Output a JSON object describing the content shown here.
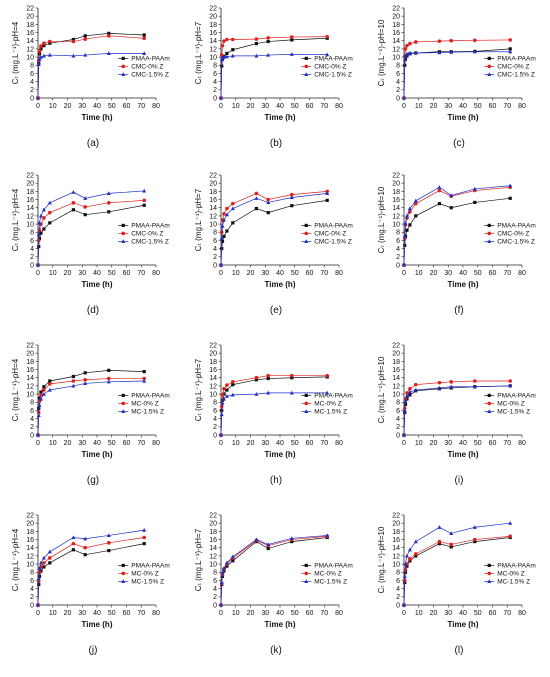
{
  "figure": {
    "x_axis_ticks": [
      "0",
      "10",
      "20",
      "30",
      "40",
      "50",
      "60",
      "70",
      "80"
    ],
    "time": [
      0,
      0.5,
      1,
      2,
      4,
      8,
      24,
      32,
      48,
      72
    ],
    "series_styles": [
      {
        "color": "#111111",
        "marker": "square"
      },
      {
        "color": "#e0201b",
        "marker": "circle"
      },
      {
        "color": "#1f2fc8",
        "marker": "triangle"
      }
    ]
  },
  "chart_data": [
    {
      "type": "line",
      "caption": "(a)",
      "xlabel": "Time (h)",
      "ylabel": "Cₜ (mg.L⁻¹)-pH=4",
      "ylim": [
        0,
        22
      ],
      "yticks": [
        0,
        2,
        4,
        6,
        8,
        10,
        12,
        14,
        16,
        18,
        20,
        22
      ],
      "xlim": [
        0,
        80
      ],
      "x": [
        0,
        0.5,
        1,
        2,
        4,
        8,
        24,
        32,
        48,
        72
      ],
      "series": [
        {
          "name": "PMAA-PAAm",
          "values": [
            0,
            8.5,
            10.8,
            12.0,
            12.8,
            13.4,
            14.3,
            15.2,
            15.8,
            15.4
          ]
        },
        {
          "name": "CMC-0% Z",
          "values": [
            0,
            9.2,
            11.5,
            12.7,
            13.4,
            13.8,
            13.8,
            14.4,
            15.2,
            14.6
          ]
        },
        {
          "name": "CMC-1.5% Z",
          "values": [
            0,
            8.2,
            9.5,
            10.0,
            10.3,
            10.5,
            10.3,
            10.5,
            10.9,
            10.9
          ]
        }
      ]
    },
    {
      "type": "line",
      "caption": "(b)",
      "xlabel": "Time (h)",
      "ylabel": "Cₜ (mg.L⁻¹)-pH=7",
      "ylim": [
        0,
        22
      ],
      "yticks": [
        0,
        2,
        4,
        6,
        8,
        10,
        12,
        14,
        16,
        18,
        20,
        22
      ],
      "xlim": [
        0,
        80
      ],
      "x": [
        0,
        0.5,
        1,
        2,
        4,
        8,
        24,
        32,
        48,
        72
      ],
      "series": [
        {
          "name": "PMAA-PAAm",
          "values": [
            0,
            7.8,
            9.5,
            10.2,
            10.9,
            11.8,
            13.3,
            13.8,
            14.2,
            14.6
          ]
        },
        {
          "name": "CMC-0% Z",
          "values": [
            0,
            10.5,
            12.8,
            13.9,
            14.3,
            14.3,
            14.4,
            14.7,
            14.9,
            15.0
          ]
        },
        {
          "name": "CMC-1.5% Z",
          "values": [
            0,
            9.4,
            9.8,
            10.0,
            10.1,
            10.3,
            10.3,
            10.5,
            10.7,
            10.6
          ]
        }
      ]
    },
    {
      "type": "line",
      "caption": "(c)",
      "xlabel": "Time (h)",
      "ylabel": "Cₜ (mg.L⁻¹)-pH=10",
      "ylim": [
        0,
        22
      ],
      "yticks": [
        0,
        2,
        4,
        6,
        8,
        10,
        12,
        14,
        16,
        18,
        20,
        22
      ],
      "xlim": [
        0,
        80
      ],
      "x": [
        0,
        0.5,
        1,
        2,
        4,
        8,
        24,
        32,
        48,
        72
      ],
      "series": [
        {
          "name": "PMAA-PAAm",
          "values": [
            0,
            8.0,
            9.5,
            10.3,
            10.8,
            11.0,
            11.3,
            11.3,
            11.4,
            12.0
          ]
        },
        {
          "name": "CMC-0% Z",
          "values": [
            0,
            10.2,
            12.0,
            12.8,
            13.3,
            13.7,
            13.9,
            14.0,
            14.1,
            14.2
          ]
        },
        {
          "name": "CMC-1.5% Z",
          "values": [
            0,
            9.4,
            10.3,
            10.8,
            11.0,
            11.0,
            11.1,
            11.2,
            11.3,
            11.3
          ]
        }
      ]
    },
    {
      "type": "line",
      "caption": "(d)",
      "xlabel": "Time (h)",
      "ylabel": "Cₜ (mg.L⁻¹)-pH=4",
      "ylim": [
        0,
        22
      ],
      "yticks": [
        0,
        2,
        4,
        6,
        8,
        10,
        12,
        14,
        16,
        18,
        20,
        22
      ],
      "xlim": [
        0,
        80
      ],
      "x": [
        0,
        0.5,
        1,
        2,
        4,
        8,
        24,
        32,
        48,
        72
      ],
      "series": [
        {
          "name": "PMAA-PAAm",
          "values": [
            0,
            4.5,
            6.5,
            7.8,
            8.8,
            10.3,
            13.5,
            12.3,
            13.0,
            14.6
          ]
        },
        {
          "name": "CMC-0% Z",
          "values": [
            0,
            6.0,
            8.5,
            10.0,
            11.5,
            12.8,
            15.2,
            14.2,
            15.2,
            15.8
          ]
        },
        {
          "name": "CMC-1.5% Z",
          "values": [
            0,
            7.5,
            10.3,
            12.0,
            13.5,
            15.2,
            17.8,
            16.3,
            17.5,
            18.1
          ]
        }
      ]
    },
    {
      "type": "line",
      "caption": "(e)",
      "xlabel": "Time (h)",
      "ylabel": "Cₜ (mg.L⁻¹)-pH=7",
      "ylim": [
        0,
        22
      ],
      "yticks": [
        0,
        2,
        4,
        6,
        8,
        10,
        12,
        14,
        16,
        18,
        20,
        22
      ],
      "xlim": [
        0,
        80
      ],
      "x": [
        0,
        0.5,
        1,
        2,
        4,
        8,
        24,
        32,
        48,
        72
      ],
      "series": [
        {
          "name": "PMAA-PAAm",
          "values": [
            0,
            4.0,
            5.8,
            7.0,
            8.3,
            10.3,
            13.8,
            12.8,
            14.5,
            15.8
          ]
        },
        {
          "name": "CMC-0% Z",
          "values": [
            0,
            8.0,
            11.0,
            12.5,
            13.8,
            15.0,
            17.5,
            16.0,
            17.2,
            18.0
          ]
        },
        {
          "name": "CMC-1.5% Z",
          "values": [
            0,
            6.5,
            9.5,
            11.0,
            12.3,
            13.8,
            16.3,
            15.3,
            16.5,
            17.5
          ]
        }
      ]
    },
    {
      "type": "line",
      "caption": "(f)",
      "xlabel": "Time (h)",
      "ylabel": "Cₜ (mg.L⁻¹)-pH=10",
      "ylim": [
        0,
        22
      ],
      "yticks": [
        0,
        2,
        4,
        6,
        8,
        10,
        12,
        14,
        16,
        18,
        20,
        22
      ],
      "xlim": [
        0,
        80
      ],
      "x": [
        0,
        0.5,
        1,
        2,
        4,
        8,
        24,
        32,
        48,
        72
      ],
      "series": [
        {
          "name": "PMAA-PAAm",
          "values": [
            0,
            4.8,
            7.0,
            8.5,
            9.8,
            12.0,
            15.0,
            14.0,
            15.3,
            16.3
          ]
        },
        {
          "name": "CMC-0% Z",
          "values": [
            0,
            6.5,
            9.8,
            11.5,
            13.0,
            15.0,
            18.2,
            16.8,
            18.2,
            19.0
          ]
        },
        {
          "name": "CMC-1.5% Z",
          "values": [
            0,
            7.0,
            10.2,
            12.0,
            13.8,
            15.7,
            19.0,
            17.0,
            18.6,
            19.4
          ]
        }
      ]
    },
    {
      "type": "line",
      "caption": "(g)",
      "xlabel": "Time (h)",
      "ylabel": "Cₜ (mg.L⁻¹)-pH=4",
      "ylim": [
        0,
        22
      ],
      "yticks": [
        0,
        2,
        4,
        6,
        8,
        10,
        12,
        14,
        16,
        18,
        20,
        22
      ],
      "xlim": [
        0,
        80
      ],
      "x": [
        0,
        0.5,
        1,
        2,
        4,
        8,
        24,
        32,
        48,
        72
      ],
      "series": [
        {
          "name": "PMAA-PAAm",
          "values": [
            0,
            6.5,
            9.0,
            10.5,
            11.8,
            13.2,
            14.3,
            15.2,
            15.8,
            15.5
          ]
        },
        {
          "name": "MC-0% Z",
          "values": [
            0,
            5.5,
            8.3,
            9.8,
            11.0,
            12.5,
            13.2,
            13.5,
            13.8,
            13.8
          ]
        },
        {
          "name": "MC-1.5% Z",
          "values": [
            0,
            4.8,
            7.3,
            8.8,
            10.0,
            11.0,
            12.0,
            12.6,
            13.0,
            13.2
          ]
        }
      ]
    },
    {
      "type": "line",
      "caption": "(h)",
      "xlabel": "Time (h)",
      "ylabel": "Cₜ (mg.L⁻¹)-pH=7",
      "ylim": [
        0,
        22
      ],
      "yticks": [
        0,
        2,
        4,
        6,
        8,
        10,
        12,
        14,
        16,
        18,
        20,
        22
      ],
      "xlim": [
        0,
        80
      ],
      "x": [
        0,
        0.5,
        1,
        2,
        4,
        8,
        24,
        32,
        48,
        72
      ],
      "series": [
        {
          "name": "PMAA-PAAm",
          "values": [
            0,
            6.0,
            8.5,
            10.0,
            11.0,
            12.3,
            13.5,
            13.8,
            14.0,
            14.2
          ]
        },
        {
          "name": "MC-0% Z",
          "values": [
            0,
            7.0,
            9.8,
            11.3,
            12.2,
            13.0,
            14.0,
            14.5,
            14.5,
            14.5
          ]
        },
        {
          "name": "MC-1.5% Z",
          "values": [
            0,
            5.0,
            7.8,
            8.8,
            9.5,
            9.8,
            10.0,
            10.3,
            10.3,
            10.3
          ]
        }
      ]
    },
    {
      "type": "line",
      "caption": "(i)",
      "xlabel": "Time (h)",
      "ylabel": "Cₜ (mg.L⁻¹)-pH=10",
      "ylim": [
        0,
        22
      ],
      "yticks": [
        0,
        2,
        4,
        6,
        8,
        10,
        12,
        14,
        16,
        18,
        20,
        22
      ],
      "xlim": [
        0,
        80
      ],
      "x": [
        0,
        0.5,
        1,
        2,
        4,
        8,
        24,
        32,
        48,
        72
      ],
      "series": [
        {
          "name": "PMAA-PAAm",
          "values": [
            0,
            5.5,
            7.5,
            8.8,
            9.8,
            10.8,
            11.3,
            11.5,
            11.8,
            12.0
          ]
        },
        {
          "name": "MC-0% Z",
          "values": [
            0,
            6.5,
            8.8,
            10.3,
            11.3,
            12.3,
            12.8,
            13.0,
            13.2,
            13.2
          ]
        },
        {
          "name": "MC-1.5% Z",
          "values": [
            0,
            6.0,
            8.3,
            9.5,
            10.5,
            11.0,
            11.5,
            11.8,
            11.8,
            12.0
          ]
        }
      ]
    },
    {
      "type": "line",
      "caption": "(j)",
      "xlabel": "Time (h)",
      "ylabel": "Cₜ (mg.L⁻¹)-pH=4",
      "ylim": [
        0,
        22
      ],
      "yticks": [
        0,
        2,
        4,
        6,
        8,
        10,
        12,
        14,
        16,
        18,
        20,
        22
      ],
      "xlim": [
        0,
        80
      ],
      "x": [
        0,
        0.5,
        1,
        2,
        4,
        8,
        24,
        32,
        48,
        72
      ],
      "series": [
        {
          "name": "PMAA-PAAm",
          "values": [
            0,
            5.0,
            7.0,
            8.3,
            9.3,
            10.3,
            13.5,
            12.3,
            13.3,
            15.0
          ]
        },
        {
          "name": "MC-0% Z",
          "values": [
            0,
            5.8,
            8.0,
            9.3,
            10.3,
            11.5,
            15.0,
            14.0,
            15.2,
            16.5
          ]
        },
        {
          "name": "MC-1.5% Z",
          "values": [
            0,
            6.5,
            9.0,
            10.3,
            11.5,
            13.0,
            16.5,
            16.2,
            17.0,
            18.3
          ]
        }
      ]
    },
    {
      "type": "line",
      "caption": "(k)",
      "xlabel": "Time (h)",
      "ylabel": "Cₜ (mg.L⁻¹)-pH=7",
      "ylim": [
        0,
        22
      ],
      "yticks": [
        0,
        2,
        4,
        6,
        8,
        10,
        12,
        14,
        16,
        18,
        20,
        22
      ],
      "xlim": [
        0,
        80
      ],
      "x": [
        0,
        0.5,
        1,
        2,
        4,
        8,
        24,
        32,
        48,
        72
      ],
      "series": [
        {
          "name": "PMAA-PAAm",
          "values": [
            0,
            5.0,
            7.0,
            8.3,
            9.5,
            10.8,
            15.5,
            13.8,
            15.5,
            16.5
          ]
        },
        {
          "name": "MC-0% Z",
          "values": [
            0,
            5.3,
            7.5,
            8.8,
            10.0,
            11.5,
            15.8,
            14.5,
            16.0,
            16.8
          ]
        },
        {
          "name": "MC-1.5% Z",
          "values": [
            0,
            5.5,
            7.8,
            9.0,
            10.3,
            11.8,
            16.0,
            14.8,
            16.3,
            17.0
          ]
        }
      ]
    },
    {
      "type": "line",
      "caption": "(l)",
      "xlabel": "Time (h)",
      "ylabel": "Cₜ (mg.L⁻¹)-pH=10",
      "ylim": [
        0,
        22
      ],
      "yticks": [
        0,
        2,
        4,
        6,
        8,
        10,
        12,
        14,
        16,
        18,
        20,
        22
      ],
      "xlim": [
        0,
        80
      ],
      "x": [
        0,
        0.5,
        1,
        2,
        4,
        8,
        24,
        32,
        48,
        72
      ],
      "series": [
        {
          "name": "PMAA-PAAm",
          "values": [
            0,
            5.5,
            8.0,
            9.5,
            10.8,
            12.0,
            15.0,
            14.2,
            15.5,
            16.5
          ]
        },
        {
          "name": "MC-0% Z",
          "values": [
            0,
            6.0,
            8.5,
            10.0,
            11.3,
            12.5,
            15.5,
            14.8,
            16.0,
            16.8
          ]
        },
        {
          "name": "MC-1.5% Z",
          "values": [
            0,
            7.0,
            10.0,
            12.0,
            13.5,
            15.5,
            19.0,
            17.5,
            19.0,
            20.0
          ]
        }
      ]
    }
  ]
}
